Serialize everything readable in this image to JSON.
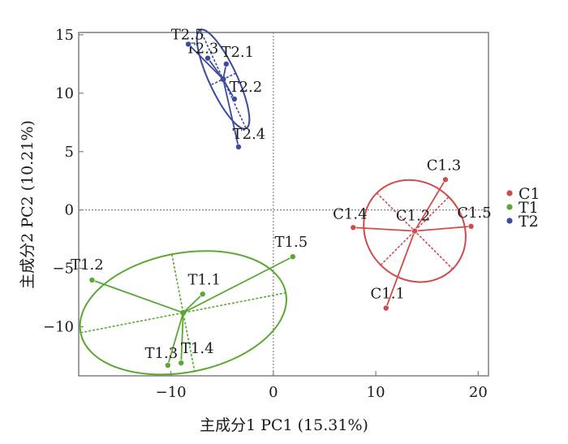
{
  "chart_data": {
    "type": "scatter",
    "title": "",
    "xlabel": "主成分1 PC1 (15.31%)",
    "ylabel": "主成分2 PC2 (10.21%)",
    "xlim": [
      -19,
      21
    ],
    "ylim": [
      -14.2,
      15.2
    ],
    "xticks": [
      -10,
      0,
      10,
      20
    ],
    "yticks": [
      -10,
      -5,
      0,
      5,
      10,
      15
    ],
    "zero_lines": true,
    "legend_position": "right",
    "series": [
      {
        "name": "C1",
        "color": "#d24a4a",
        "centroid": [
          13.8,
          -1.8
        ],
        "ellipse": {
          "rx": 4.7,
          "ry": 4.6,
          "angle_deg": 45
        },
        "points": [
          {
            "label": "C1.1",
            "x": 11.0,
            "y": -8.4
          },
          {
            "label": "C1.2",
            "x": 13.8,
            "y": -1.8
          },
          {
            "label": "C1.3",
            "x": 16.8,
            "y": 2.6
          },
          {
            "label": "C1.4",
            "x": 7.8,
            "y": -1.5
          },
          {
            "label": "C1.5",
            "x": 19.3,
            "y": -1.4
          }
        ]
      },
      {
        "name": "T1",
        "color": "#5aa832",
        "centroid": [
          -8.8,
          -8.8
        ],
        "ellipse": {
          "rx": 10.2,
          "ry": 5.1,
          "angle_deg": 11
        },
        "points": [
          {
            "label": "T1.1",
            "x": -6.9,
            "y": -7.2
          },
          {
            "label": "T1.2",
            "x": -17.7,
            "y": -6.0
          },
          {
            "label": "T1.3",
            "x": -10.3,
            "y": -13.3
          },
          {
            "label": "T1.4",
            "x": -9.0,
            "y": -13.1
          },
          {
            "label": "T1.5",
            "x": 1.9,
            "y": -4.0
          }
        ]
      },
      {
        "name": "T2",
        "color": "#3b4ba5",
        "centroid": [
          -4.9,
          11.2
        ],
        "ellipse": {
          "rx": 5.3,
          "ry": 1.2,
          "angle_deg": -65
        },
        "points": [
          {
            "label": "T2.1",
            "x": -4.6,
            "y": 12.5
          },
          {
            "label": "T2.2",
            "x": -3.8,
            "y": 9.5
          },
          {
            "label": "T2.3",
            "x": -6.4,
            "y": 13.0
          },
          {
            "label": "T2.4",
            "x": -3.4,
            "y": 5.4
          },
          {
            "label": "T2.5",
            "x": -8.3,
            "y": 14.2
          }
        ]
      }
    ]
  }
}
